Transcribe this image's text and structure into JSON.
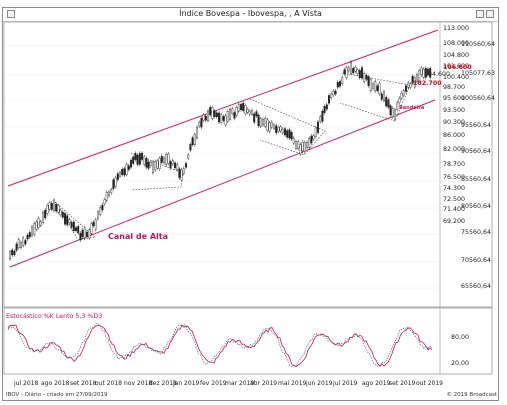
{
  "window": {
    "title": "Índice Bovespa - Ibovespa, , A Vista"
  },
  "price_axis": {
    "labels_left": [
      "113.000",
      "108.000",
      "104.800",
      "101.600",
      "100.400",
      "98.700",
      "95.600",
      "93.500",
      "90.300",
      "86.000",
      "82.000",
      "78.700",
      "76.500",
      "74.300",
      "72.500",
      "71.400",
      "69.200"
    ],
    "labels_right": [
      "110560,64",
      "105077,63",
      "100560,64",
      "95560,64",
      "90560,64",
      "85560,64",
      "80560,64",
      "75560,64",
      "70560,64",
      "65560,64"
    ],
    "highlight_top": "106.600",
    "highlight_low": "102.700",
    "inline_value": "104.600"
  },
  "stochastic": {
    "title": "Estocástico %K Lento 5,3    %D3",
    "levels": [
      "80,00",
      "20,00"
    ]
  },
  "x_axis": {
    "labels": [
      "jul 2018",
      "ago 2018",
      "set 2018",
      "out 2018",
      "nov 2018",
      "dez 2018",
      "jan 2019",
      "fev 2019",
      "mar 2019",
      "abr 2019",
      "mai 2019",
      "jun 2019",
      "jul 2019",
      "ago 2019",
      "set 2019",
      "out 2019"
    ]
  },
  "annotations": {
    "channel": "Canal de Alta",
    "flag": "Bandeira"
  },
  "footer": {
    "left": "IBOV - Diário - criado em 27/09/2019",
    "right": "© 2019 Broadcast"
  },
  "colors": {
    "channel_line": "#d81b60",
    "candles": "#222222",
    "stochastic": "#c2185b"
  },
  "icons": {
    "window_menu": "window-menu-icon",
    "minimize": "minimize-icon",
    "close": "close-icon"
  }
}
